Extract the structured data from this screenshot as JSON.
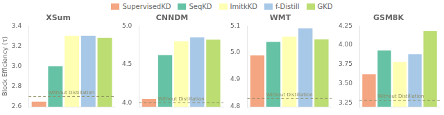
{
  "chart_data": [
    {
      "type": "bar",
      "title": "XSum",
      "ylabel": "Block Efficiency (τ)",
      "categories": [
        null
      ],
      "series": [
        {
          "name": "SupervisedKD",
          "color": "#F4A582",
          "values": [
            2.65
          ]
        },
        {
          "name": "SeqKD",
          "color": "#66C2A5",
          "values": [
            3.0
          ]
        },
        {
          "name": "ImitkKD",
          "color": "#FFFFB3",
          "values": [
            3.3
          ]
        },
        {
          "name": "f-Distill",
          "color": "#A8C8E8",
          "values": [
            3.3
          ]
        },
        {
          "name": "GKD",
          "color": "#BCDD72",
          "values": [
            3.28
          ]
        }
      ],
      "ylim": [
        2.6,
        3.4
      ],
      "yticks": [
        2.6,
        2.8,
        {
          "value": 3.0,
          "label": "3.0"
        },
        3.2,
        3.4
      ],
      "annotations": [
        {
          "text": "Without Distillation",
          "y": 2.7,
          "color": "#8B8B60",
          "line_style": "dashed"
        }
      ],
      "grid": false,
      "tick_labels": "y",
      "legend": "top"
    },
    {
      "type": "bar",
      "title": "CNNDM",
      "categories": [
        null
      ],
      "series": [
        {
          "name": "SupervisedKD",
          "color": "#F4A582",
          "values": [
            4.05
          ]
        },
        {
          "name": "SeqKD",
          "color": "#66C2A5",
          "values": [
            4.62
          ]
        },
        {
          "name": "ImitkKD",
          "color": "#FFFFB3",
          "values": [
            4.8
          ]
        },
        {
          "name": "f-Distill",
          "color": "#A8C8E8",
          "values": [
            4.85
          ]
        },
        {
          "name": "GKD",
          "color": "#BCDD72",
          "values": [
            4.82
          ]
        }
      ],
      "ylim": [
        3.95,
        5.0
      ],
      "yticks": [
        {
          "value": 4.0,
          "label": "4.0"
        },
        {
          "value": 4.5,
          "label": "4.5"
        },
        {
          "value": 5.0,
          "label": "5.0"
        }
      ],
      "annotations": [
        {
          "text": "Without Distillation",
          "y": 4.0,
          "color": "#8B8B60",
          "line_style": "dashed"
        }
      ],
      "grid": false,
      "tick_labels": "y"
    },
    {
      "type": "bar",
      "title": "WMT",
      "categories": [
        null
      ],
      "series": [
        {
          "name": "SupervisedKD",
          "color": "#F4A582",
          "values": [
            4.99
          ]
        },
        {
          "name": "SeqKD",
          "color": "#66C2A5",
          "values": [
            5.04
          ]
        },
        {
          "name": "ImitkKD",
          "color": "#FFFFB3",
          "values": [
            5.06
          ]
        },
        {
          "name": "f-Distill",
          "color": "#A8C8E8",
          "values": [
            5.09
          ]
        },
        {
          "name": "GKD",
          "color": "#BCDD72",
          "values": [
            5.05
          ]
        }
      ],
      "ylim": [
        4.8,
        5.1
      ],
      "yticks": [
        4.8,
        4.9,
        {
          "value": 5.0,
          "label": "5.0"
        },
        5.1
      ],
      "annotations": [
        {
          "text": "Without Distillation",
          "y": 4.83,
          "color": "#8B8B60",
          "line_style": "dashed"
        }
      ],
      "grid": false,
      "tick_labels": "y"
    },
    {
      "type": "bar",
      "title": "GSM8K",
      "categories": [
        null
      ],
      "series": [
        {
          "name": "SupervisedKD",
          "color": "#F4A582",
          "values": [
            3.62
          ]
        },
        {
          "name": "SeqKD",
          "color": "#66C2A5",
          "values": [
            3.93
          ]
        },
        {
          "name": "ImitkKD",
          "color": "#FFFFB3",
          "values": [
            3.78
          ]
        },
        {
          "name": "f-Distill",
          "color": "#A8C8E8",
          "values": [
            3.88
          ]
        },
        {
          "name": "GKD",
          "color": "#BCDD72",
          "values": [
            4.18
          ]
        }
      ],
      "ylim": [
        3.2,
        4.25
      ],
      "yticks": [
        3.25,
        {
          "value": 3.5,
          "label": "3.50"
        },
        3.75,
        {
          "value": 4.0,
          "label": "4.00"
        },
        4.25
      ],
      "annotations": [
        {
          "text": "Without Distillation",
          "y": 3.28,
          "color": "#8B8B60",
          "line_style": "dashed"
        }
      ],
      "grid": false,
      "tick_labels": "y"
    }
  ]
}
